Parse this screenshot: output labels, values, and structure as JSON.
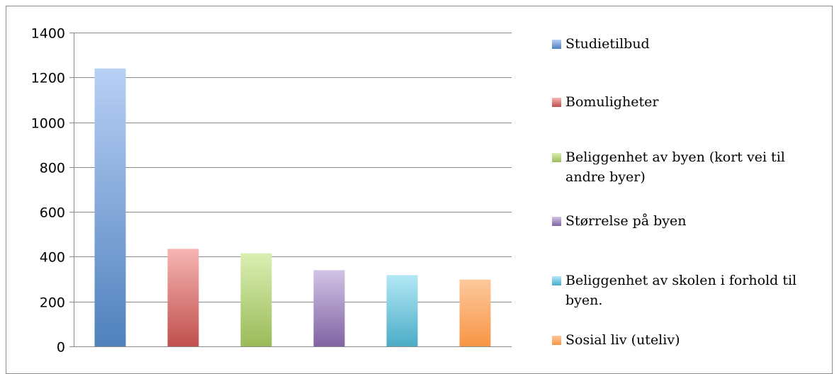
{
  "chart_data": {
    "type": "bar",
    "title": "",
    "xlabel": "",
    "ylabel": "",
    "ylim": [
      0,
      1400
    ],
    "yticks": [
      "0",
      "200",
      "400",
      "600",
      "800",
      "1000",
      "1200",
      "1400"
    ],
    "grid": true,
    "legend_position": "right",
    "categories": [
      "Studietilbud",
      "Bomuligheter",
      "Beliggenhet av byen (kort vei til andre byer)",
      "Størrelse på byen",
      "Beliggenhet av skolen i forhold til byen.",
      "Sosial liv (uteliv)"
    ],
    "values": [
      1240,
      435,
      415,
      340,
      318,
      298
    ],
    "colors": [
      "#4f81bd",
      "#c0504d",
      "#9bbb59",
      "#8064a2",
      "#4bacc6",
      "#f79646"
    ],
    "colors_light": [
      "#b9d0f5",
      "#f6b5b3",
      "#d9efb2",
      "#d2c3e6",
      "#b3e8f6",
      "#fdc89c"
    ]
  }
}
